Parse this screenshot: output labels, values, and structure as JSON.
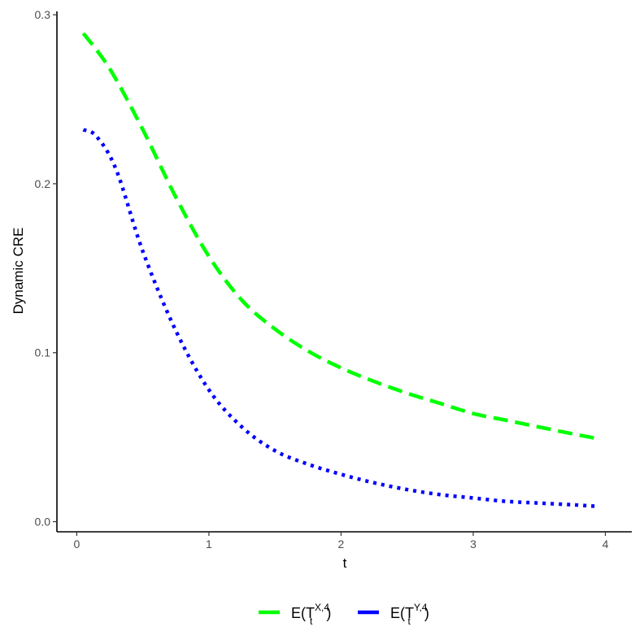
{
  "chart_data": {
    "type": "line",
    "title": "",
    "xlabel": "t",
    "ylabel": "Dynamic CRE",
    "xlim": [
      -0.15,
      4.2
    ],
    "ylim": [
      -0.006,
      0.302
    ],
    "x_ticks": [
      0,
      1,
      2,
      3,
      4
    ],
    "y_ticks": [
      0.0,
      0.1,
      0.2,
      0.3
    ],
    "x_tick_labels": [
      "0",
      "1",
      "2",
      "3",
      "4"
    ],
    "y_tick_labels": [
      "0.0",
      "0.1",
      "0.2",
      "0.3"
    ],
    "grid": false,
    "legend_position": "bottom",
    "series": [
      {
        "name": "E(T_t^{X,4})",
        "legend_main": "E(T",
        "legend_sup": "X,4",
        "legend_sub": "t",
        "legend_close": ")",
        "color": "#00ff00",
        "line_style": "dashed",
        "x": [
          0.05,
          0.25,
          0.5,
          0.75,
          1.0,
          1.25,
          1.5,
          1.75,
          2.0,
          2.25,
          2.5,
          2.75,
          3.0,
          3.25,
          3.5,
          3.75,
          3.95
        ],
        "values": [
          0.289,
          0.268,
          0.232,
          0.192,
          0.157,
          0.131,
          0.114,
          0.101,
          0.091,
          0.083,
          0.076,
          0.07,
          0.064,
          0.06,
          0.056,
          0.052,
          0.049
        ]
      },
      {
        "name": "E(T_t^{Y,4})",
        "legend_main": "E(T",
        "legend_sup": "Y,4",
        "legend_sub": "t",
        "legend_close": ")",
        "color": "#0000ff",
        "line_style": "dotted",
        "x": [
          0.05,
          0.15,
          0.3,
          0.5,
          0.75,
          1.0,
          1.25,
          1.5,
          1.75,
          2.0,
          2.25,
          2.5,
          2.75,
          3.0,
          3.25,
          3.5,
          3.75,
          3.95
        ],
        "values": [
          0.232,
          0.228,
          0.208,
          0.16,
          0.113,
          0.078,
          0.056,
          0.042,
          0.034,
          0.028,
          0.023,
          0.019,
          0.016,
          0.014,
          0.012,
          0.011,
          0.01,
          0.009
        ]
      }
    ]
  }
}
